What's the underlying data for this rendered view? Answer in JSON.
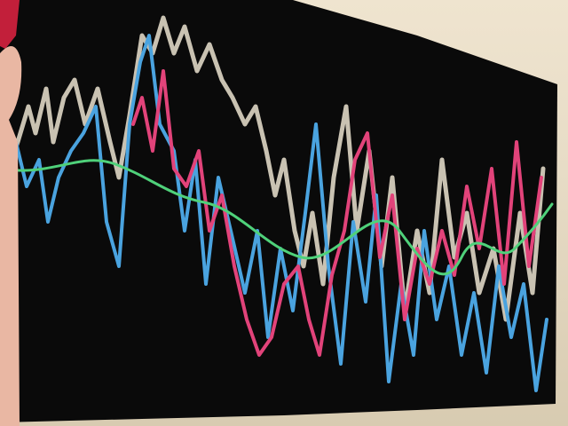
{
  "scene": {
    "subject": "black-fabric-with-glitter-glue-lines",
    "colors": {
      "background_wall": "#e9dfc9",
      "fabric": "#0a0a0a",
      "silver": "#c9c2b2",
      "blue": "#4aa3df",
      "pink": "#e2437a",
      "green": "#4fd17a",
      "skin": "#e9b7a3",
      "red_edge": "#c21f3a"
    }
  }
}
